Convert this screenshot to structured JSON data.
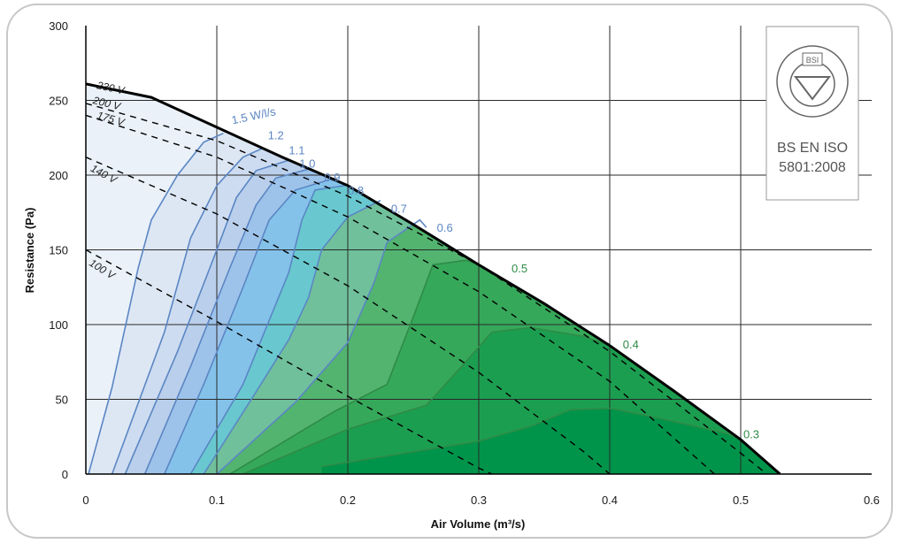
{
  "chart_data": {
    "type": "area",
    "title": "",
    "xlabel": "Air Volume (m³/s)",
    "ylabel": "Resistance (Pa)",
    "xlim": [
      0,
      0.6
    ],
    "ylim": [
      0,
      300
    ],
    "x_ticks": [
      "0",
      "0.1",
      "0.2",
      "0.3",
      "0.4",
      "0.5",
      "0.6"
    ],
    "y_ticks": [
      "0",
      "50",
      "100",
      "150",
      "200",
      "250",
      "300"
    ],
    "grid": true,
    "fan_curves": [
      {
        "name": "230 V",
        "style": "solid-bold",
        "points": [
          [
            0.0,
            261
          ],
          [
            0.05,
            252
          ],
          [
            0.1,
            232
          ],
          [
            0.15,
            212
          ],
          [
            0.2,
            193
          ],
          [
            0.25,
            167
          ],
          [
            0.3,
            140
          ],
          [
            0.35,
            114
          ],
          [
            0.4,
            86
          ],
          [
            0.45,
            55
          ],
          [
            0.5,
            23
          ],
          [
            0.53,
            0
          ]
        ]
      },
      {
        "name": "200 V",
        "style": "dashed",
        "points": [
          [
            0.0,
            248
          ],
          [
            0.1,
            223
          ],
          [
            0.2,
            186
          ],
          [
            0.3,
            140
          ],
          [
            0.4,
            82
          ],
          [
            0.5,
            14
          ],
          [
            0.52,
            0
          ]
        ]
      },
      {
        "name": "175 V",
        "style": "dashed",
        "points": [
          [
            0.0,
            240
          ],
          [
            0.1,
            212
          ],
          [
            0.2,
            172
          ],
          [
            0.3,
            122
          ],
          [
            0.4,
            62
          ],
          [
            0.48,
            0
          ]
        ]
      },
      {
        "name": "140 V",
        "style": "dashed",
        "points": [
          [
            0.0,
            212
          ],
          [
            0.1,
            174
          ],
          [
            0.2,
            126
          ],
          [
            0.3,
            68
          ],
          [
            0.38,
            15
          ],
          [
            0.4,
            0
          ]
        ]
      },
      {
        "name": "100 V",
        "style": "dashed",
        "points": [
          [
            0.0,
            150
          ],
          [
            0.1,
            102
          ],
          [
            0.2,
            52
          ],
          [
            0.3,
            4
          ],
          [
            0.31,
            0
          ]
        ]
      }
    ],
    "efficiency_contours": [
      {
        "label": "1.5 W/l/s",
        "color": "#5b86c4",
        "label_at": [
          0.112,
          234
        ],
        "points": [
          [
            0.002,
            0
          ],
          [
            0.02,
            58
          ],
          [
            0.04,
            138
          ],
          [
            0.05,
            170
          ],
          [
            0.07,
            200
          ],
          [
            0.09,
            222
          ],
          [
            0.105,
            228
          ]
        ]
      },
      {
        "label": "1.2",
        "color": "#5b86c4",
        "label_at": [
          0.139,
          224
        ],
        "points": [
          [
            0.02,
            0
          ],
          [
            0.06,
            95
          ],
          [
            0.08,
            158
          ],
          [
            0.1,
            193
          ],
          [
            0.12,
            212
          ],
          [
            0.135,
            218
          ]
        ]
      },
      {
        "label": "1.1",
        "color": "#5b86c4",
        "label_at": [
          0.155,
          214
        ],
        "points": [
          [
            0.03,
            0
          ],
          [
            0.07,
            82
          ],
          [
            0.1,
            150
          ],
          [
            0.115,
            185
          ],
          [
            0.13,
            203
          ],
          [
            0.155,
            210
          ]
        ]
      },
      {
        "label": "1.0",
        "color": "#5b86c4",
        "label_at": [
          0.163,
          205
        ],
        "points": [
          [
            0.045,
            0
          ],
          [
            0.08,
            72
          ],
          [
            0.11,
            138
          ],
          [
            0.13,
            180
          ],
          [
            0.145,
            198
          ],
          [
            0.17,
            204
          ]
        ]
      },
      {
        "label": "0.9",
        "color": "#5b86c4",
        "label_at": [
          0.182,
          196
        ],
        "points": [
          [
            0.06,
            0
          ],
          [
            0.09,
            60
          ],
          [
            0.12,
            125
          ],
          [
            0.14,
            170
          ],
          [
            0.16,
            190
          ],
          [
            0.19,
            198
          ]
        ]
      },
      {
        "label": "0.8",
        "color": "#5b86c4",
        "label_at": [
          0.2,
          187
        ],
        "points": [
          [
            0.08,
            0
          ],
          [
            0.12,
            60
          ],
          [
            0.155,
            135
          ],
          [
            0.165,
            170
          ],
          [
            0.175,
            190
          ],
          [
            0.198,
            193
          ]
        ]
      },
      {
        "label": "0.7",
        "color": "#5b86c4",
        "label_at": [
          0.233,
          175
        ],
        "points": [
          [
            0.09,
            0
          ],
          [
            0.13,
            55
          ],
          [
            0.155,
            90
          ],
          [
            0.17,
            118
          ],
          [
            0.18,
            150
          ],
          [
            0.2,
            172
          ],
          [
            0.225,
            183
          ]
        ]
      },
      {
        "label": "0.6",
        "color": "#5b86c4",
        "label_at": [
          0.268,
          162
        ],
        "points": [
          [
            0.1,
            0
          ],
          [
            0.16,
            48
          ],
          [
            0.2,
            88
          ],
          [
            0.22,
            128
          ],
          [
            0.23,
            155
          ],
          [
            0.255,
            170
          ],
          [
            0.26,
            165
          ]
        ]
      },
      {
        "label": "0.5",
        "color": "#2e8b47",
        "label_at": [
          0.325,
          135
        ],
        "points": [
          [
            0.11,
            0
          ],
          [
            0.19,
            42
          ],
          [
            0.23,
            60
          ],
          [
            0.25,
            105
          ],
          [
            0.265,
            140
          ],
          [
            0.29,
            143
          ],
          [
            0.3,
            140
          ]
        ]
      },
      {
        "label": "0.4",
        "color": "#2e8b47",
        "label_at": [
          0.41,
          84
        ],
        "points": [
          [
            0.12,
            0
          ],
          [
            0.2,
            30
          ],
          [
            0.26,
            46
          ],
          [
            0.29,
            75
          ],
          [
            0.31,
            95
          ],
          [
            0.34,
            98
          ],
          [
            0.38,
            92
          ],
          [
            0.4,
            86
          ]
        ]
      },
      {
        "label": "0.3",
        "color": "#2e8b47",
        "label_at": [
          0.502,
          24
        ],
        "points": [
          [
            0.18,
            5
          ],
          [
            0.3,
            22
          ],
          [
            0.34,
            32
          ],
          [
            0.37,
            43
          ],
          [
            0.4,
            44
          ],
          [
            0.44,
            37
          ],
          [
            0.49,
            27
          ],
          [
            0.5,
            23
          ]
        ]
      }
    ],
    "certification": {
      "mark": "BSI",
      "line1": "BS EN ISO",
      "line2": "5801:2008"
    }
  }
}
